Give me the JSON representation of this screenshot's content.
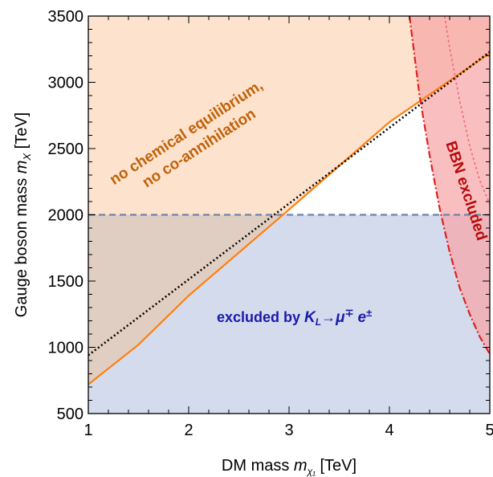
{
  "chart_data": {
    "type": "area",
    "xlabel": "DM mass m_χ1 [TeV]",
    "xlabel_parts": {
      "main": "DM mass ",
      "m": "m",
      "sub": "χ₁",
      "unit": " [TeV]"
    },
    "ylabel": "Gauge boson mass m_X [TeV]",
    "ylabel_parts": {
      "main": "Gauge boson mass ",
      "m": "m",
      "sub": "X",
      "unit": " [TeV]"
    },
    "xlim": [
      1,
      5
    ],
    "ylim": [
      500,
      3500
    ],
    "xticks": [
      "1",
      "2",
      "3",
      "4",
      "5"
    ],
    "xtick_values": [
      1,
      2,
      3,
      4,
      5
    ],
    "yticks": [
      "500",
      "1000",
      "1500",
      "2000",
      "2500",
      "3000",
      "3500"
    ],
    "ytick_values": [
      500,
      1000,
      1500,
      2000,
      2500,
      3000,
      3500
    ],
    "grid": false,
    "colors": {
      "orange_region": "#fde3cd",
      "blue_region": "#d3dbed",
      "overlap_region": "#e0cec2",
      "orange_line": "#ff7f0e",
      "black_dotted": "#000000",
      "blue_dashed": "#6b84ad",
      "bbn_fill": "#f6a6a8",
      "bbn_line": "#e02020",
      "bbn_dotted": "#f07080",
      "label_orange": "#c0620a",
      "label_blue": "#1a1aa8",
      "label_red": "#b80a0a"
    },
    "series": [
      {
        "role": "no-chemical-equilibrium-boundary",
        "style": "solid-orange",
        "x": [
          1,
          1.5,
          2,
          3,
          4,
          5
        ],
        "y": [
          720,
          1020,
          1390,
          2040,
          2700,
          3220
        ]
      },
      {
        "role": "dotted-reference-line",
        "style": "dotted-black",
        "x": [
          1,
          5
        ],
        "y": [
          940,
          3230
        ]
      },
      {
        "role": "kaon-exclusion-limit",
        "style": "dashed-blue",
        "x": [
          1,
          5
        ],
        "y": [
          2000,
          2000
        ]
      },
      {
        "role": "bbn-boundary",
        "style": "dash-dot-red",
        "x": [
          4.2,
          4.3,
          4.4,
          4.5,
          4.6,
          4.7,
          4.8,
          4.9,
          5.0
        ],
        "y": [
          3500,
          2900,
          2450,
          2050,
          1720,
          1450,
          1250,
          1080,
          950
        ]
      },
      {
        "role": "bbn-inner-boundary",
        "style": "dotted-red",
        "x": [
          4.55,
          4.6,
          4.7,
          4.8,
          4.9,
          5.0
        ],
        "y": [
          3500,
          3260,
          2860,
          2520,
          2260,
          2080
        ]
      }
    ],
    "annotations": {
      "orange_text_line1": "no chemical equilibrium,",
      "orange_text_line2": "no co-annihilation",
      "blue_text_main": "excluded by ",
      "blue_K": "K",
      "blue_L": "L",
      "blue_arrow": "→",
      "blue_mu": "μ",
      "blue_mu_sup": "∓",
      "blue_e": "e",
      "blue_e_sup": "±",
      "red_text": "BBN excluded"
    }
  }
}
